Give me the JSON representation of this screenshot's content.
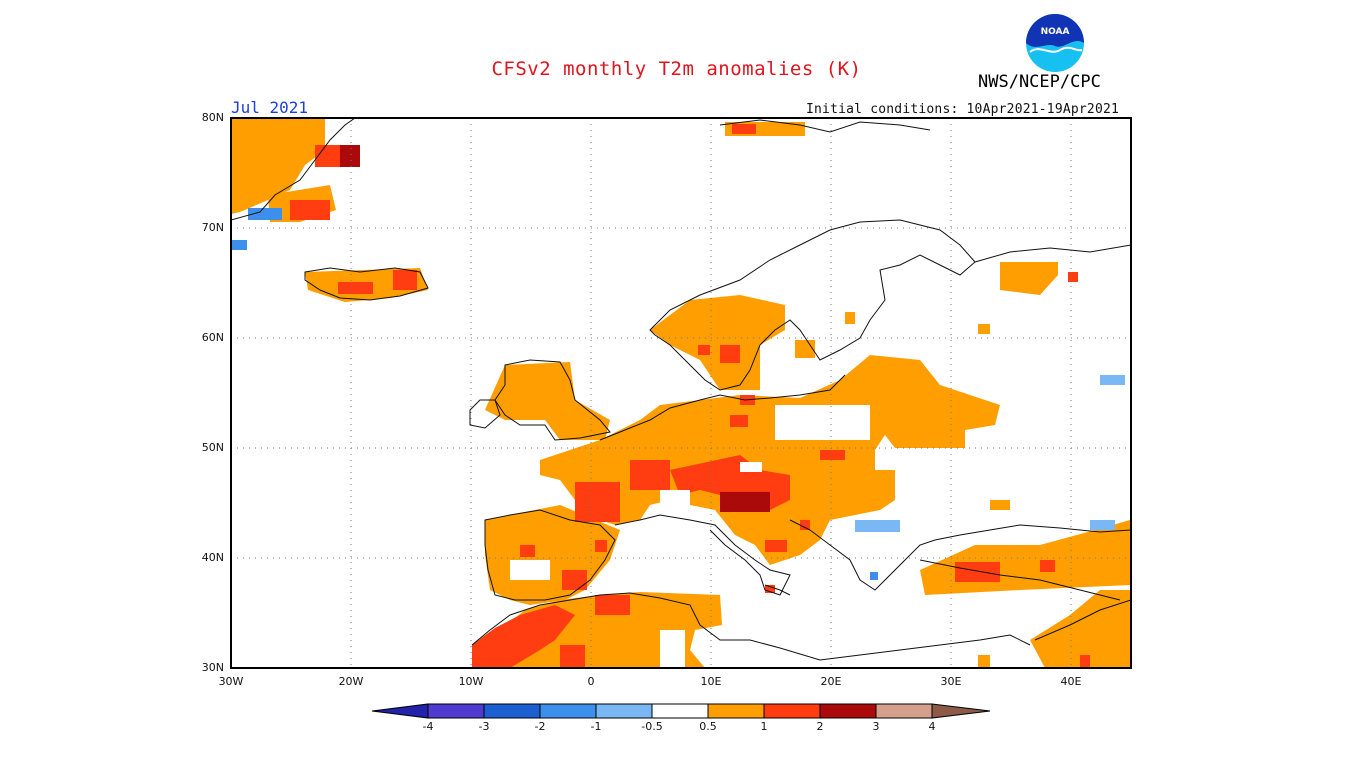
{
  "header": {
    "title": "CFSv2 monthly T2m anomalies (K)",
    "org": "NWS/NCEP/CPC",
    "logo_text": "NOAA",
    "month": "Jul 2021",
    "init_conditions": "Initial conditions: 10Apr2021-19Apr2021"
  },
  "map": {
    "lat_labels": [
      "80N",
      "70N",
      "60N",
      "50N",
      "40N",
      "30N"
    ],
    "lon_labels": [
      "30W",
      "20W",
      "10W",
      "0",
      "10E",
      "20E",
      "30E",
      "40E"
    ],
    "extent": {
      "lon_min": -30,
      "lon_max": 45,
      "lat_min": 30,
      "lat_max": 80
    }
  },
  "colorbar": {
    "labels": [
      "-4",
      "-3",
      "-2",
      "-1",
      "-0.5",
      "0.5",
      "1",
      "2",
      "3",
      "4"
    ],
    "colors": {
      "below_-4": "#2222aa",
      "-4_-3": "#4f3bd0",
      "-3_-2": "#1b5fd0",
      "-2_-1": "#3c8fea",
      "-1_-0.5": "#7ab8f5",
      "-0.5_0.5": "#ffffff",
      "0.5_1": "#ff9e00",
      "1_2": "#ff3d10",
      "2_3": "#aa0a0a",
      "3_4": "#d4a08c",
      "above_4": "#8c5a46"
    }
  }
}
